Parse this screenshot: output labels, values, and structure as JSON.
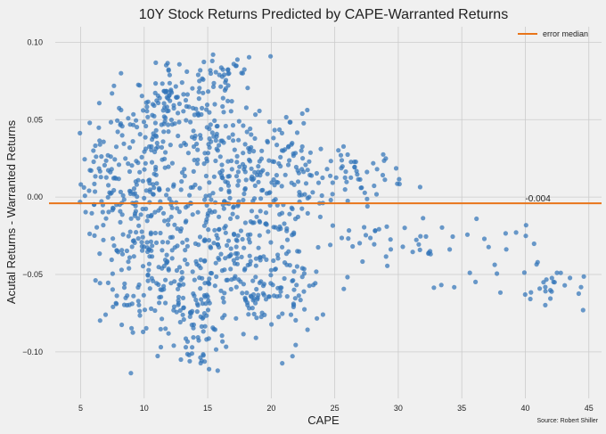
{
  "chart_data": {
    "type": "scatter",
    "title": "10Y Stock Returns Predicted by CAPE-Warranted Returns",
    "xlabel": "CAPE",
    "ylabel": "Acutal Returns - Warranted Returns",
    "xlim": [
      3,
      46
    ],
    "ylim": [
      -0.13,
      0.11
    ],
    "xticks": [
      5,
      10,
      15,
      20,
      25,
      30,
      35,
      40,
      45
    ],
    "yticks": [
      -0.1,
      -0.05,
      0.0,
      0.05,
      0.1
    ],
    "xtick_labels": [
      "5",
      "10",
      "15",
      "20",
      "25",
      "30",
      "35",
      "40",
      "45"
    ],
    "ytick_labels": [
      "−0.10",
      "−0.05",
      "0.00",
      "0.05",
      "0.10"
    ],
    "grid": true,
    "legend": {
      "placement": "top-right",
      "entries": [
        "error median"
      ]
    },
    "median_line": {
      "name": "error median",
      "value": -0.004,
      "label": "-0.004",
      "label_x": 40
    },
    "source": "Source: Robert Shiller",
    "colors": {
      "points": "#3274b8",
      "median": "#e8751a",
      "background": "#f0f0f0",
      "grid": "#cbcbcb"
    },
    "series": [
      {
        "clusters": [
          {
            "cx": 6.8,
            "cy": 0.01,
            "sx": 0.9,
            "sy": 0.025,
            "n": 60
          },
          {
            "cx": 9.0,
            "cy": -0.02,
            "sx": 1.3,
            "sy": 0.04,
            "n": 110
          },
          {
            "cx": 11.8,
            "cy": 0.058,
            "sx": 1.2,
            "sy": 0.012,
            "n": 70
          },
          {
            "cx": 10.5,
            "cy": 0.005,
            "sx": 1.5,
            "sy": 0.035,
            "n": 120
          },
          {
            "cx": 13.0,
            "cy": -0.06,
            "sx": 1.8,
            "sy": 0.025,
            "n": 110
          },
          {
            "cx": 14.6,
            "cy": -0.085,
            "sx": 1.2,
            "sy": 0.015,
            "n": 45
          },
          {
            "cx": 15.5,
            "cy": 0.03,
            "sx": 2.2,
            "sy": 0.03,
            "n": 150
          },
          {
            "cx": 16.0,
            "cy": 0.08,
            "sx": 1.4,
            "sy": 0.01,
            "n": 35
          },
          {
            "cx": 16.5,
            "cy": -0.03,
            "sx": 2.0,
            "sy": 0.025,
            "n": 130
          },
          {
            "cx": 18.5,
            "cy": -0.06,
            "sx": 1.3,
            "sy": 0.02,
            "n": 50
          },
          {
            "cx": 19.5,
            "cy": 0.015,
            "sx": 2.0,
            "sy": 0.02,
            "n": 90
          },
          {
            "cx": 21.5,
            "cy": -0.055,
            "sx": 1.2,
            "sy": 0.02,
            "n": 60
          },
          {
            "cx": 22.5,
            "cy": 0.01,
            "sx": 1.2,
            "sy": 0.015,
            "n": 40
          },
          {
            "cx": 26.5,
            "cy": 0.015,
            "sx": 2.0,
            "sy": 0.008,
            "n": 55
          },
          {
            "cx": 28.0,
            "cy": -0.03,
            "sx": 1.8,
            "sy": 0.01,
            "n": 25
          },
          {
            "cx": 33.0,
            "cy": -0.03,
            "sx": 2.0,
            "sy": 0.012,
            "n": 20
          },
          {
            "cx": 38.0,
            "cy": -0.04,
            "sx": 1.8,
            "sy": 0.015,
            "n": 15
          },
          {
            "cx": 42.5,
            "cy": -0.06,
            "sx": 1.4,
            "sy": 0.008,
            "n": 25
          }
        ]
      }
    ]
  }
}
